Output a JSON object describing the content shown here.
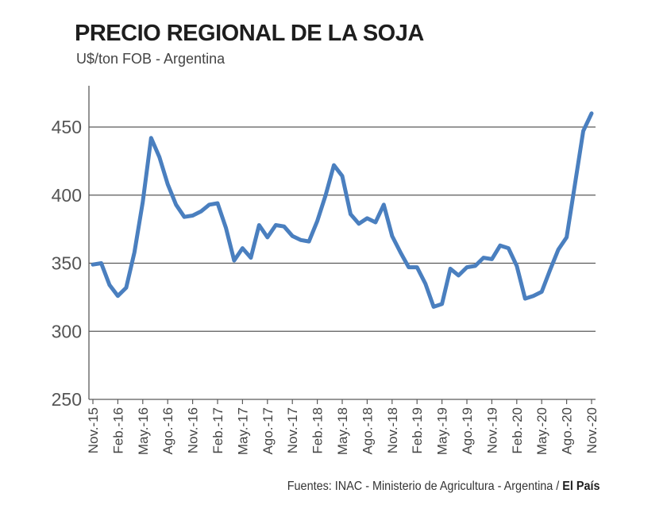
{
  "chart_data": {
    "type": "line",
    "title": "PRECIO REGIONAL DE LA SOJA",
    "subtitle": "U$/ton FOB - Argentina",
    "xlabel": "",
    "ylabel": "",
    "ylim": [
      250,
      470
    ],
    "yticks": [
      250,
      300,
      350,
      400,
      450
    ],
    "grid": true,
    "line_color": "#4a7fbf",
    "x_tick_labels": [
      "Nov.-15",
      "Feb.-16",
      "May.-16",
      "Ago.-16",
      "Nov.-16",
      "Feb.-17",
      "May.-17",
      "Ago.-17",
      "Nov.-17",
      "Feb.-18",
      "May.-18",
      "Ago.-18",
      "Nov.-18",
      "Feb.-19",
      "May.-19",
      "Ago.-19",
      "Nov.-19",
      "Feb.-20",
      "May.-20",
      "Ago.-20",
      "Nov.-20"
    ],
    "series": [
      {
        "values": [
          349,
          350,
          334,
          326,
          332,
          358,
          395,
          442,
          428,
          408,
          393,
          384,
          385,
          388,
          393,
          394,
          376,
          352,
          361,
          354,
          378,
          369,
          378,
          377,
          370,
          367,
          366,
          381,
          400,
          422,
          414,
          386,
          379,
          383,
          380,
          393,
          370,
          358,
          347,
          347,
          335,
          318,
          320,
          346,
          341,
          347,
          348,
          354,
          353,
          363,
          361,
          348,
          324,
          326,
          329,
          345,
          360,
          369,
          408,
          447,
          460
        ]
      }
    ]
  },
  "source": {
    "prefix": "Fuentes:  INAC - Ministerio de Agricultura - Argentina / ",
    "brand": "El País"
  }
}
